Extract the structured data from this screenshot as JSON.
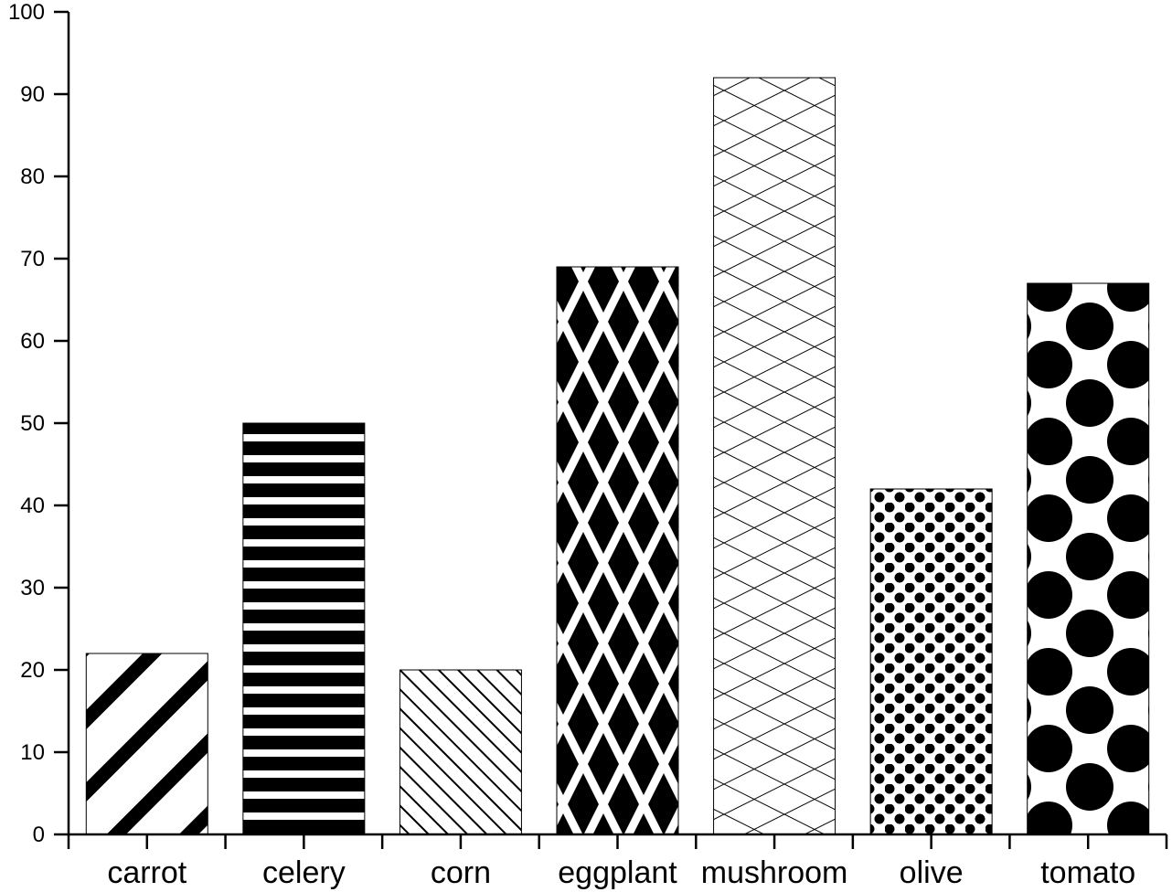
{
  "chart_data": {
    "type": "bar",
    "title": "",
    "xlabel": "",
    "ylabel": "",
    "categories": [
      "carrot",
      "celery",
      "corn",
      "eggplant",
      "mushroom",
      "olive",
      "tomato"
    ],
    "values": [
      22,
      50,
      20,
      69,
      92,
      42,
      67
    ],
    "patterns": [
      "diagonal-thick",
      "horizontal-stripes",
      "diagonal-thin",
      "diamond-lattice",
      "crosshatch-thin",
      "small-dots",
      "large-dots"
    ],
    "ylim": [
      0,
      100
    ],
    "yticks": [
      0,
      10,
      20,
      30,
      40,
      50,
      60,
      70,
      80,
      90,
      100
    ],
    "grid": false,
    "legend": "none",
    "colors": {
      "ink": "#000000",
      "paper": "#ffffff"
    }
  }
}
